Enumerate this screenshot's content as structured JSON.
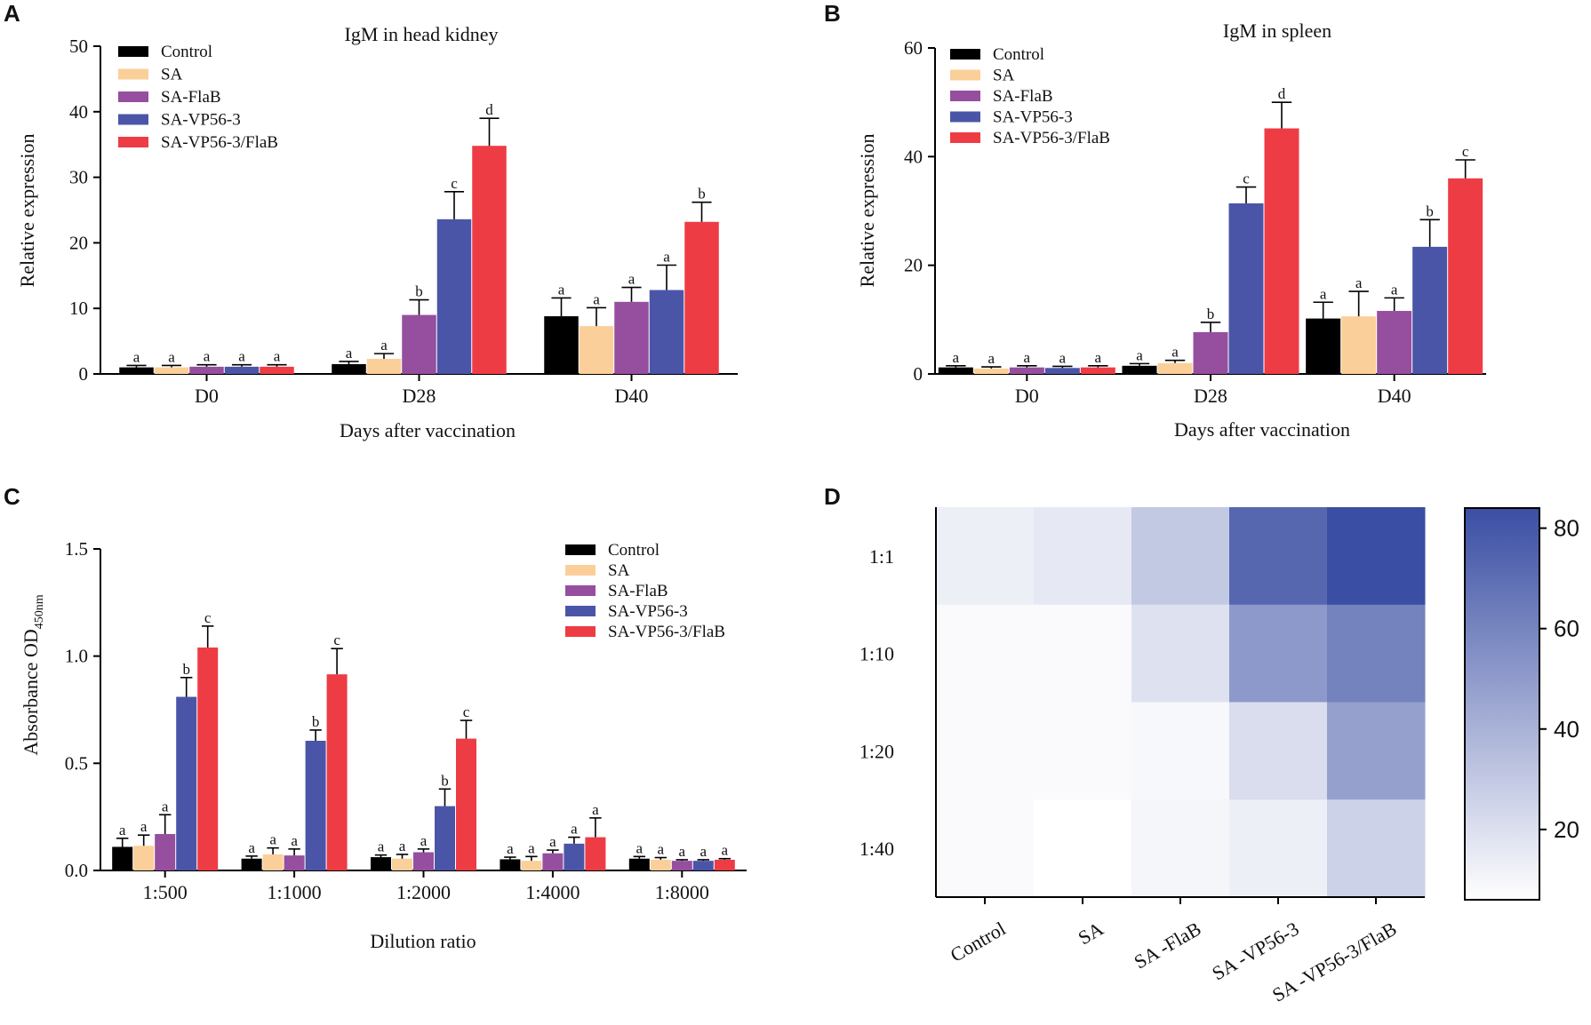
{
  "colors": {
    "Control": "#000000",
    "SA": "#fbcf99",
    "SA-FlaB": "#954f9e",
    "SA-VP56-3": "#4b55a7",
    "SA-VP56-3/FlaB": "#ee3c45",
    "heat_low": "#ffffff",
    "heat_high": "#3a4ea3"
  },
  "chart_data": [
    {
      "panel": "A",
      "type": "bar",
      "title": "IgM in head kidney",
      "xlabel": "Days after vaccination",
      "ylabel": "Relative expression",
      "ylim": [
        0,
        50
      ],
      "yticks": [
        0,
        10,
        20,
        30,
        40,
        50
      ],
      "categories": [
        "D0",
        "D28",
        "D40"
      ],
      "legend_position": "top-left",
      "series": [
        {
          "name": "Control",
          "values": [
            1.0,
            1.5,
            8.8
          ],
          "errors": [
            0.3,
            0.4,
            2.8
          ],
          "letters": [
            "a",
            "a",
            "a"
          ]
        },
        {
          "name": "SA",
          "values": [
            1.0,
            2.3,
            7.3
          ],
          "errors": [
            0.3,
            0.8,
            2.8
          ],
          "letters": [
            "a",
            "a",
            "a"
          ]
        },
        {
          "name": "SA-FlaB",
          "values": [
            1.1,
            9.0,
            11.0
          ],
          "errors": [
            0.3,
            2.3,
            2.2
          ],
          "letters": [
            "a",
            "b",
            "a"
          ]
        },
        {
          "name": "SA-VP56-3",
          "values": [
            1.1,
            23.6,
            12.8
          ],
          "errors": [
            0.3,
            4.2,
            3.8
          ],
          "letters": [
            "a",
            "c",
            "a"
          ]
        },
        {
          "name": "SA-VP56-3/FlaB",
          "values": [
            1.1,
            34.8,
            23.2
          ],
          "errors": [
            0.3,
            4.2,
            3.0
          ],
          "letters": [
            "a",
            "d",
            "b"
          ]
        }
      ]
    },
    {
      "panel": "B",
      "type": "bar",
      "title": "IgM in spleen",
      "xlabel": "Days after vaccination",
      "ylabel": "Relative expression",
      "ylim": [
        0,
        60
      ],
      "yticks": [
        0,
        20,
        40,
        60
      ],
      "categories": [
        "D0",
        "D28",
        "D40"
      ],
      "legend_position": "top-left",
      "series": [
        {
          "name": "Control",
          "values": [
            1.2,
            1.5,
            10.2
          ],
          "errors": [
            0.3,
            0.4,
            3.0
          ],
          "letters": [
            "a",
            "a",
            "a"
          ]
        },
        {
          "name": "SA",
          "values": [
            1.0,
            2.0,
            10.6
          ],
          "errors": [
            0.3,
            0.5,
            4.6
          ],
          "letters": [
            "a",
            "a",
            "a"
          ]
        },
        {
          "name": "SA-FlaB",
          "values": [
            1.2,
            7.7,
            11.6
          ],
          "errors": [
            0.3,
            1.8,
            2.4
          ],
          "letters": [
            "a",
            "b",
            "a"
          ]
        },
        {
          "name": "SA-VP56-3",
          "values": [
            1.1,
            31.4,
            23.4
          ],
          "errors": [
            0.3,
            3.0,
            5.0
          ],
          "letters": [
            "a",
            "c",
            "b"
          ]
        },
        {
          "name": "SA-VP56-3/FlaB",
          "values": [
            1.2,
            45.2,
            36.0
          ],
          "errors": [
            0.3,
            4.8,
            3.4
          ],
          "letters": [
            "a",
            "d",
            "c"
          ]
        }
      ]
    },
    {
      "panel": "C",
      "type": "bar",
      "title": "",
      "xlabel": "Dilution ratio",
      "ylabel": "Absorbance OD",
      "ylabel_subscript": "450nm",
      "ylim": [
        0,
        1.5
      ],
      "yticks": [
        0.0,
        0.5,
        1.0,
        1.5
      ],
      "ytick_labels": [
        "0.0",
        "0.5",
        "1.0",
        "1.5"
      ],
      "categories": [
        "1:500",
        "1:1000",
        "1:2000",
        "1:4000",
        "1:8000"
      ],
      "legend_position": "top-right",
      "series": [
        {
          "name": "Control",
          "values": [
            0.11,
            0.055,
            0.062,
            0.052,
            0.055
          ],
          "errors": [
            0.04,
            0.012,
            0.01,
            0.01,
            0.01
          ],
          "letters": [
            "a",
            "a",
            "a",
            "a",
            "a"
          ]
        },
        {
          "name": "SA",
          "values": [
            0.115,
            0.075,
            0.055,
            0.045,
            0.05
          ],
          "errors": [
            0.05,
            0.03,
            0.02,
            0.02,
            0.01
          ],
          "letters": [
            "a",
            "a",
            "a",
            "a",
            "a"
          ]
        },
        {
          "name": "SA-FlaB",
          "values": [
            0.17,
            0.07,
            0.085,
            0.08,
            0.045
          ],
          "errors": [
            0.09,
            0.03,
            0.015,
            0.015,
            0.005
          ],
          "letters": [
            "a",
            "a",
            "a",
            "a",
            "a"
          ]
        },
        {
          "name": "SA-VP56-3",
          "values": [
            0.81,
            0.605,
            0.3,
            0.125,
            0.045
          ],
          "errors": [
            0.09,
            0.05,
            0.08,
            0.03,
            0.005
          ],
          "letters": [
            "b",
            "b",
            "b",
            "a",
            "a"
          ]
        },
        {
          "name": "SA-VP56-3/FlaB",
          "values": [
            1.04,
            0.915,
            0.615,
            0.155,
            0.05
          ],
          "errors": [
            0.1,
            0.12,
            0.085,
            0.09,
            0.005
          ],
          "letters": [
            "c",
            "c",
            "c",
            "a",
            "a"
          ]
        }
      ]
    },
    {
      "panel": "D",
      "type": "heatmap",
      "rows": [
        "1:1",
        "1:10",
        "1:20",
        "1:40"
      ],
      "columns": [
        "Control",
        "SA",
        "SA -FlaB",
        "SA -VP56-3",
        "SA -VP56-3/FlaB"
      ],
      "values": [
        [
          13,
          16,
          30,
          73,
          84
        ],
        [
          8,
          8,
          19,
          51,
          61
        ],
        [
          8,
          8,
          9,
          21,
          48
        ],
        [
          8,
          6,
          10,
          13,
          26
        ]
      ],
      "colorbar_range": [
        6,
        84
      ],
      "colorbar_ticks": [
        20,
        40,
        60,
        80
      ]
    }
  ]
}
